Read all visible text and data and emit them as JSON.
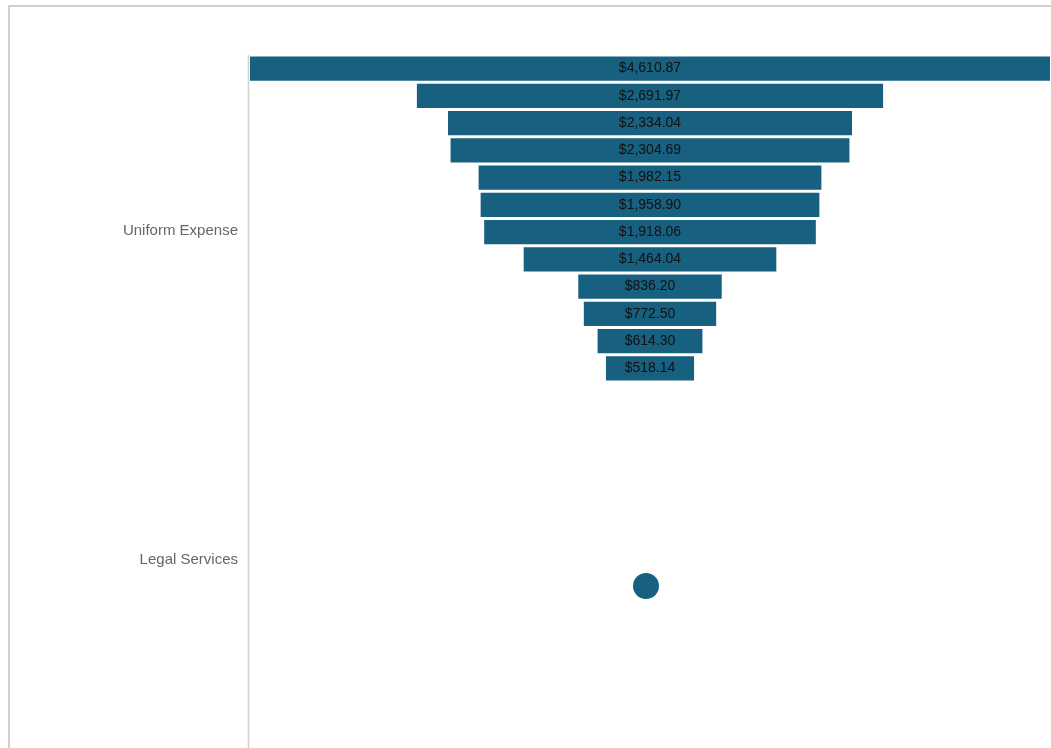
{
  "chart_data": {
    "type": "other",
    "categories": [
      null,
      null,
      null,
      null,
      null,
      null,
      null,
      null,
      null,
      null,
      null,
      null
    ],
    "values": [
      4610.87,
      2691.97,
      2334.04,
      2304.69,
      1982.15,
      1958.9,
      1918.06,
      1464.04,
      836.2,
      772.5,
      614.3,
      518.14
    ],
    "value_labels": [
      "$4,610.87",
      "$2,691.97",
      "$2,334.04",
      "$2,304.69",
      "$1,982.15",
      "$1,958.90",
      "$1,918.06",
      "$1,464.04",
      "$836.20",
      "$772.50",
      "$614.30",
      "$518.14"
    ],
    "color": "#17607f",
    "annotations": [
      "Uniform Expense",
      "Legal Services"
    ],
    "legend": false
  }
}
